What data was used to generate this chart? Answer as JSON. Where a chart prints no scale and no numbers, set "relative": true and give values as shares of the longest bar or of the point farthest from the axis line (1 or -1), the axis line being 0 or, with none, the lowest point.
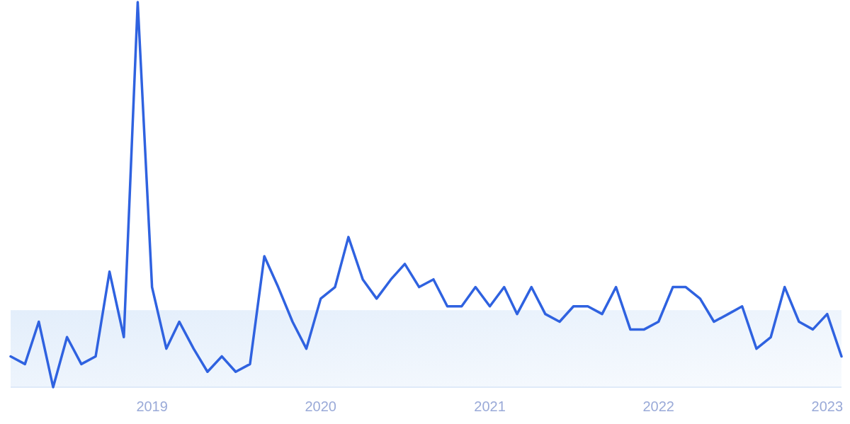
{
  "chart_data": {
    "type": "line",
    "relative": true,
    "x": [
      "2018-03",
      "2018-04",
      "2018-05",
      "2018-06",
      "2018-07",
      "2018-08",
      "2018-09",
      "2018-10",
      "2018-11",
      "2018-12",
      "2019-01",
      "2019-02",
      "2019-03",
      "2019-04",
      "2019-05",
      "2019-06",
      "2019-07",
      "2019-08",
      "2019-09",
      "2019-10",
      "2019-11",
      "2019-12",
      "2020-01",
      "2020-02",
      "2020-03",
      "2020-04",
      "2020-05",
      "2020-06",
      "2020-07",
      "2020-08",
      "2020-09",
      "2020-10",
      "2020-11",
      "2020-12",
      "2021-01",
      "2021-02",
      "2021-03",
      "2021-04",
      "2021-05",
      "2021-06",
      "2021-07",
      "2021-08",
      "2021-09",
      "2021-10",
      "2021-11",
      "2021-12",
      "2022-01",
      "2022-02",
      "2022-03",
      "2022-04",
      "2022-05",
      "2022-06",
      "2022-07",
      "2022-08",
      "2022-09",
      "2022-10",
      "2022-11",
      "2022-12",
      "2023-01",
      "2023-02"
    ],
    "series": [
      {
        "color": "#2f62e0",
        "values": [
          0.08,
          0.06,
          0.17,
          0.0,
          0.13,
          0.06,
          0.08,
          0.3,
          0.13,
          1,
          0.26,
          0.1,
          0.17,
          0.1,
          0.04,
          0.08,
          0.04,
          0.06,
          0.34,
          0.26,
          0.17,
          0.1,
          0.23,
          0.26,
          0.39,
          0.28,
          0.23,
          0.28,
          0.32,
          0.26,
          0.28,
          0.21,
          0.21,
          0.26,
          0.21,
          0.26,
          0.19,
          0.26,
          0.19,
          0.17,
          0.21,
          0.21,
          0.19,
          0.26,
          0.15,
          0.15,
          0.17,
          0.26,
          0.26,
          0.23,
          0.17,
          0.19,
          0.21,
          0.1,
          0.13,
          0.26,
          0.17,
          0.15,
          0.19,
          0.08
        ]
      }
    ],
    "xlim": [
      "2018-03",
      "2023-02"
    ],
    "xticks": [
      "2019",
      "2020",
      "2021",
      "2022",
      "2023"
    ],
    "bands": [
      {
        "axis": "y",
        "from": 0,
        "to": 0.2,
        "color": "#e3eefb"
      }
    ],
    "line_style": "solid",
    "marker": "none"
  }
}
